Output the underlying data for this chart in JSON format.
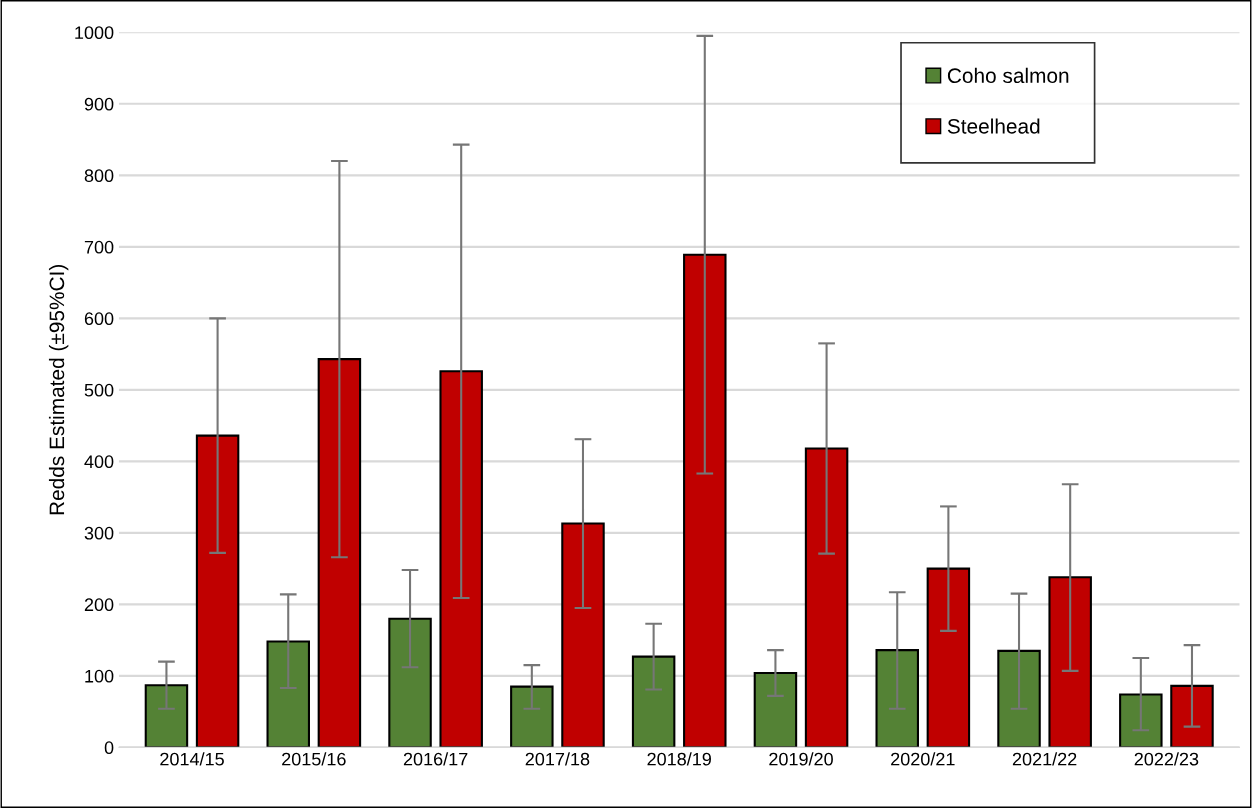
{
  "chart_data": {
    "type": "bar",
    "ylabel": "Redds Estimated (±95%CI)",
    "categories": [
      "2014/15",
      "2015/16",
      "2016/17",
      "2017/18",
      "2018/19",
      "2019/20",
      "2020/21",
      "2021/22",
      "2022/23"
    ],
    "series": [
      {
        "name": "Coho salmon",
        "color": "#548235",
        "values": [
          87,
          148,
          180,
          85,
          127,
          104,
          136,
          135,
          74
        ],
        "errors": [
          [
            54,
            120
          ],
          [
            83,
            214
          ],
          [
            112,
            248
          ],
          [
            54,
            115
          ],
          [
            81,
            173
          ],
          [
            72,
            136
          ],
          [
            54,
            217
          ],
          [
            54,
            215
          ],
          [
            24,
            125
          ]
        ]
      },
      {
        "name": "Steelhead",
        "color": "#c00000",
        "values": [
          436,
          543,
          526,
          313,
          689,
          418,
          250,
          238,
          86
        ],
        "errors": [
          [
            272,
            600
          ],
          [
            266,
            820
          ],
          [
            209,
            843
          ],
          [
            195,
            431
          ],
          [
            383,
            995
          ],
          [
            271,
            565
          ],
          [
            163,
            337
          ],
          [
            107,
            368
          ],
          [
            29,
            143
          ]
        ]
      }
    ],
    "ylim": [
      0,
      1000
    ],
    "yticks": [
      0,
      100,
      200,
      300,
      400,
      500,
      600,
      700,
      800,
      900,
      1000
    ],
    "grid": "y",
    "legend": "top right"
  }
}
